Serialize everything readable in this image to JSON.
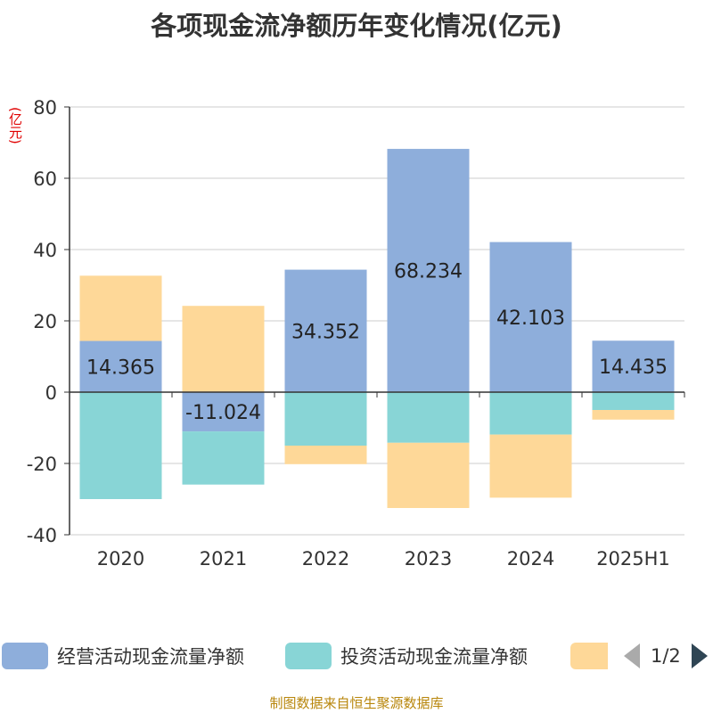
{
  "title": "各项现金流净额历年变化情况(亿元)",
  "unit": "(亿元)",
  "source": "制图数据来自恒生聚源数据库",
  "legend": {
    "items": [
      "经营活动现金流量净额",
      "投资活动现金流量净额",
      ""
    ],
    "pager": "1/2"
  },
  "chart_data": {
    "type": "bar",
    "stacked": true,
    "title": "各项现金流净额历年变化情况(亿元)",
    "ylabel": "(亿元)",
    "ylim": [
      -40,
      80
    ],
    "yticks": [
      -40,
      -20,
      0,
      20,
      40,
      60,
      80
    ],
    "grid": true,
    "legend_position": "bottom",
    "categories": [
      "2020",
      "2021",
      "2022",
      "2023",
      "2024",
      "2025H1"
    ],
    "series": [
      {
        "name": "经营活动现金流量净额",
        "color": "#8eaedb",
        "values": [
          14.365,
          -11.024,
          34.352,
          68.234,
          42.103,
          14.435
        ],
        "labels": [
          "14.365",
          "-11.024",
          "34.352",
          "68.234",
          "42.103",
          "14.435"
        ]
      },
      {
        "name": "投资活动现金流量净额",
        "color": "#88d5d6",
        "values": [
          -30,
          -14.9,
          -15,
          -14.2,
          -11.9,
          -5
        ]
      },
      {
        "color": "#fed898",
        "values": [
          18.3,
          24.2,
          -5.2,
          -18.3,
          -17.7,
          -2.7
        ]
      }
    ]
  }
}
